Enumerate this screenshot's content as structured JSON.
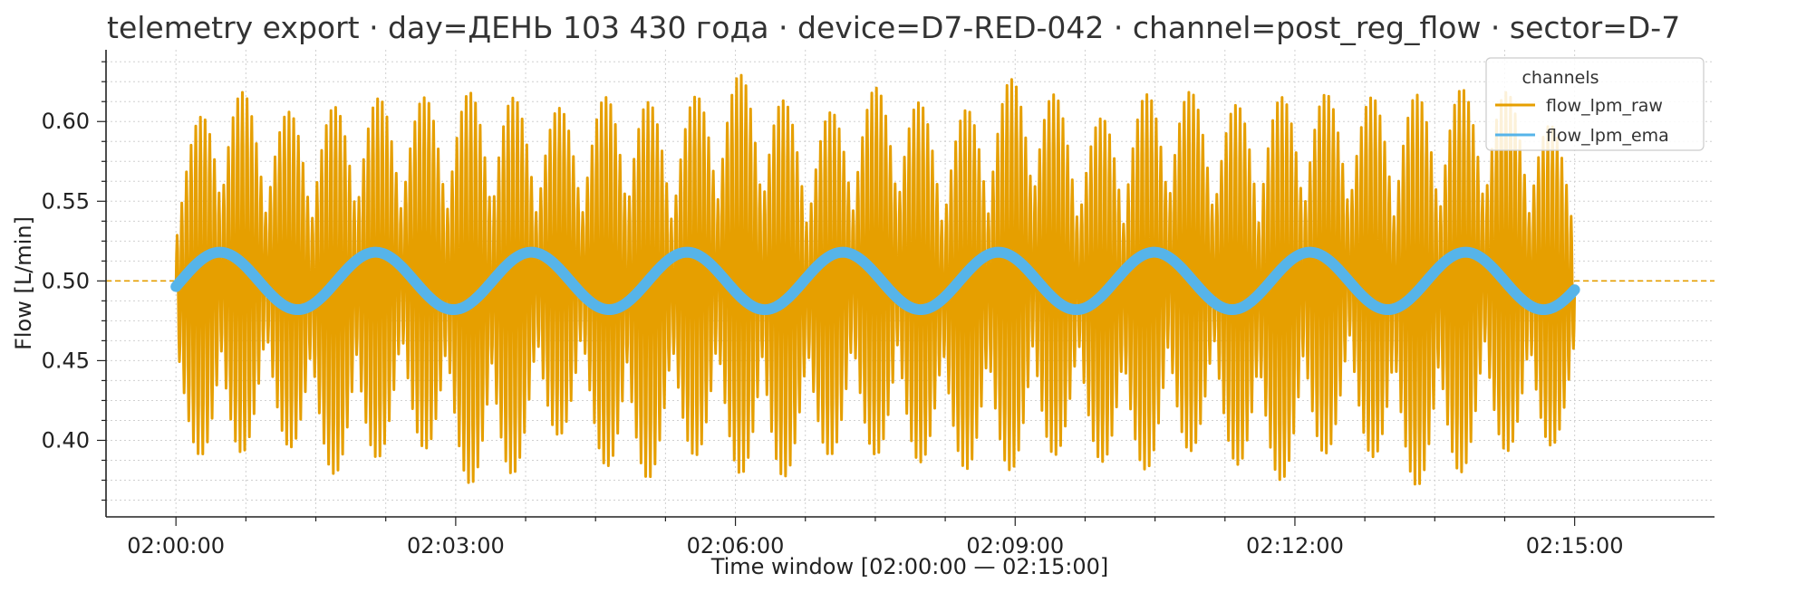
{
  "chart_data": {
    "type": "line",
    "title": "telemetry export · day=ДЕНЬ 103 430 года · device=D7-RED-042 · channel=post_reg_flow · sector=D-7",
    "xlabel": "Time window [02:00:00 — 02:15:00]",
    "ylabel": "Flow [L/min]",
    "x_range": [
      "02:00:00",
      "02:15:00"
    ],
    "xlim": [
      "01:59:15",
      "02:16:30"
    ],
    "ylim": [
      0.352,
      0.645
    ],
    "x_ticks": [
      "02:00:00",
      "02:03:00",
      "02:06:00",
      "02:09:00",
      "02:12:00",
      "02:15:00"
    ],
    "y_ticks": [
      "0.40",
      "0.45",
      "0.50",
      "0.55",
      "0.60"
    ],
    "grid": true,
    "reference_line": {
      "y": 0.5,
      "style": "dashed",
      "color": "#E69F00"
    },
    "legend": {
      "title": "channels",
      "placement": "top-right",
      "entries": [
        "flow_lpm_raw",
        "flow_lpm_ema"
      ]
    },
    "series": [
      {
        "name": "flow_lpm_raw",
        "color": "#E69F00",
        "baseline": 0.5,
        "slow_period_min": 1.67,
        "slow_amplitude": 0.02,
        "fast_peaks": [
          0.59,
          0.63,
          0.61,
          0.59,
          0.62,
          0.6,
          0.61,
          0.63,
          0.6,
          0.58,
          0.62,
          0.6,
          0.62,
          0.63,
          0.6,
          0.6,
          0.62,
          0.6,
          0.61,
          0.63,
          0.59,
          0.61,
          0.62,
          0.6,
          0.61,
          0.62,
          0.6,
          0.61,
          0.63,
          0.6,
          0.6,
          0.57
        ],
        "fast_troughs": [
          0.42,
          0.38,
          0.41,
          0.37,
          0.38,
          0.39,
          0.38,
          0.37,
          0.39,
          0.38,
          0.36,
          0.39,
          0.38,
          0.37,
          0.39,
          0.38,
          0.38,
          0.39,
          0.37,
          0.38,
          0.39,
          0.38,
          0.38,
          0.39,
          0.37,
          0.38,
          0.39,
          0.37,
          0.38,
          0.37,
          0.38,
          0.39
        ]
      },
      {
        "name": "flow_lpm_ema",
        "color": "#56B4E9",
        "baseline": 0.5,
        "amplitude": 0.018,
        "period_min": 1.67,
        "start": "02:00:00",
        "end": "02:15:00"
      }
    ]
  }
}
